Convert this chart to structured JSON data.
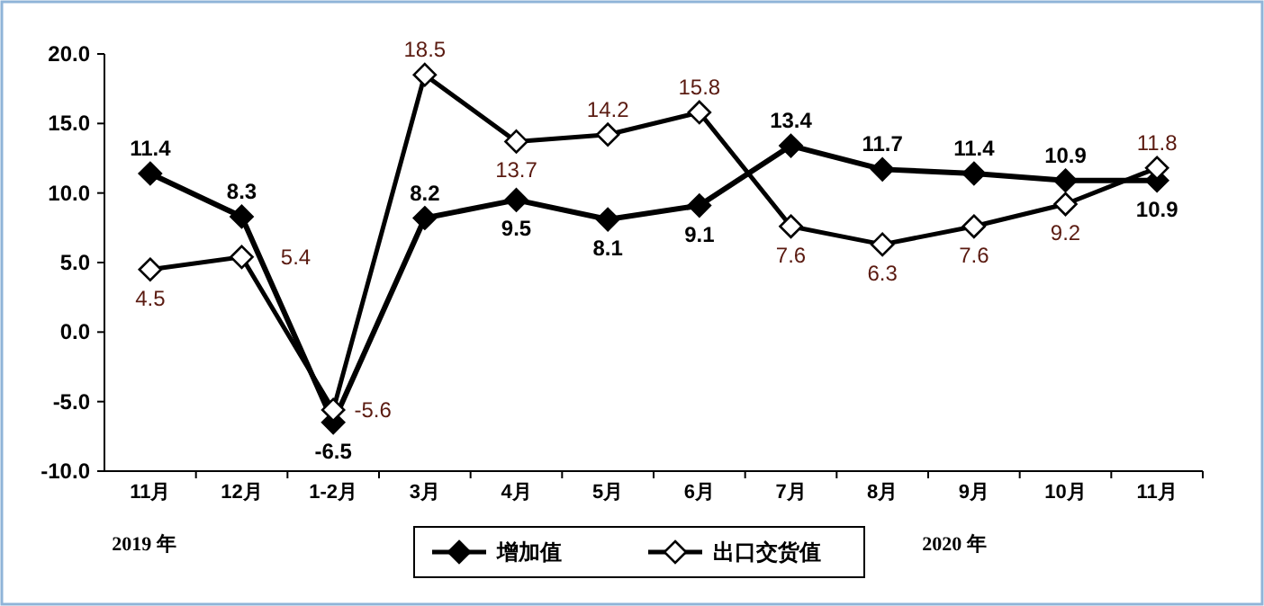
{
  "chart_data": {
    "type": "line",
    "categories": [
      "11月",
      "12月",
      "1-2月",
      "3月",
      "4月",
      "5月",
      "6月",
      "7月",
      "8月",
      "9月",
      "10月",
      "11月"
    ],
    "series": [
      {
        "name": "增加值",
        "color": "#000000",
        "values": [
          11.4,
          8.3,
          -6.5,
          8.2,
          9.5,
          8.1,
          9.1,
          13.4,
          11.7,
          11.4,
          10.9,
          10.9
        ]
      },
      {
        "name": "出口交货值",
        "color": "#000000",
        "values": [
          4.5,
          5.4,
          -5.6,
          18.5,
          13.7,
          14.2,
          15.8,
          7.6,
          6.3,
          7.6,
          9.2,
          11.8
        ]
      }
    ],
    "ylim": [
      -10,
      20
    ],
    "yticks": [
      {
        "value": -10,
        "label": "-10.0"
      },
      {
        "value": -5,
        "label": "-5.0"
      },
      {
        "value": 0,
        "label": "0.0"
      },
      {
        "value": 5,
        "label": "5.0"
      },
      {
        "value": 10,
        "label": "10.0"
      },
      {
        "value": 15,
        "label": "15.0"
      },
      {
        "value": 20,
        "label": "20.0"
      }
    ],
    "annotations": [
      "2019 年",
      "2020 年"
    ],
    "data_labels": true,
    "legend": "bottom",
    "grid": false,
    "marker": "diamond",
    "line_style": "solid"
  }
}
